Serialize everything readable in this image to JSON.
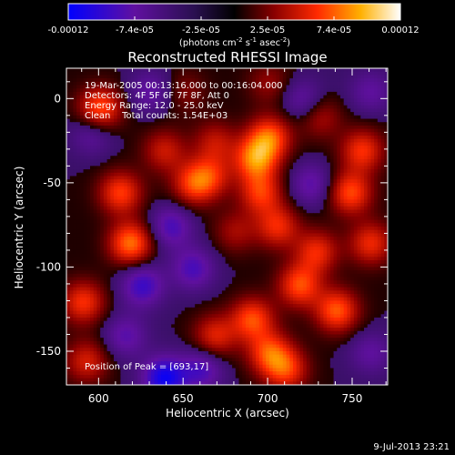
{
  "chart_data": {
    "type": "heatmap",
    "title": "Reconstructed RHESSI Image",
    "xlabel": "Heliocentric X (arcsec)",
    "ylabel": "Heliocentric Y (arcsec)",
    "x_range": [
      581,
      771
    ],
    "y_range": [
      -170,
      18
    ],
    "x_ticks": [
      600,
      650,
      700,
      750
    ],
    "y_ticks": [
      0,
      -50,
      -100,
      -150
    ],
    "colorbar": {
      "min": -0.00012,
      "max": 0.00012,
      "tick_labels": [
        "-0.00012",
        "-7.4e-05",
        "-2.5e-05",
        "2.5e-05",
        "7.4e-05",
        "0.00012"
      ],
      "units_label": "(photons cm",
      "units_exp1": "-2",
      "units_mid": " s",
      "units_exp2": "-1",
      "units_end": " asec",
      "units_exp3": "-2",
      "units_close": ")"
    },
    "annotations": [
      "19-Mar-2005 00:13:16.000 to 00:16:04.000",
      "Detectors: 4F 5F 6F 7F 8F, Att 0",
      "Energy Range: 12.0 - 25.0 keV",
      "Clean    Total counts: 1.54E+03"
    ],
    "peak_label": "Position of Peak = [693,17]",
    "peak_position": [
      693,
      17
    ],
    "footer_date": "9-Jul-2013 23:21",
    "blobs": [
      {
        "x": 600,
        "y": -5,
        "v": 0.9
      },
      {
        "x": 612,
        "y": -55,
        "v": 0.8
      },
      {
        "x": 618,
        "y": -85,
        "v": 1.0
      },
      {
        "x": 638,
        "y": -30,
        "v": 0.55
      },
      {
        "x": 655,
        "y": -50,
        "v": 0.7
      },
      {
        "x": 665,
        "y": -45,
        "v": 0.6
      },
      {
        "x": 680,
        "y": -78,
        "v": 0.4
      },
      {
        "x": 700,
        "y": 10,
        "v": 0.35
      },
      {
        "x": 695,
        "y": -55,
        "v": 0.75
      },
      {
        "x": 692,
        "y": -35,
        "v": 1.0
      },
      {
        "x": 700,
        "y": -22,
        "v": 0.9
      },
      {
        "x": 705,
        "y": -75,
        "v": 0.7
      },
      {
        "x": 718,
        "y": -110,
        "v": 0.85
      },
      {
        "x": 728,
        "y": -90,
        "v": 0.7
      },
      {
        "x": 740,
        "y": -125,
        "v": 0.9
      },
      {
        "x": 748,
        "y": -55,
        "v": 0.85
      },
      {
        "x": 755,
        "y": -30,
        "v": 0.75
      },
      {
        "x": 760,
        "y": -85,
        "v": 0.7
      },
      {
        "x": 690,
        "y": -130,
        "v": 0.85
      },
      {
        "x": 700,
        "y": -150,
        "v": 0.8
      },
      {
        "x": 710,
        "y": -160,
        "v": 0.75
      },
      {
        "x": 668,
        "y": -140,
        "v": 0.65
      },
      {
        "x": 590,
        "y": -120,
        "v": 0.75
      },
      {
        "x": 592,
        "y": -155,
        "v": 0.6
      },
      {
        "x": 668,
        "y": -25,
        "v": 0.5
      },
      {
        "x": 730,
        "y": -10,
        "v": 0.45
      },
      {
        "x": 650,
        "y": 5,
        "v": 0.3
      },
      {
        "x": 642,
        "y": -75,
        "v": -0.6
      },
      {
        "x": 625,
        "y": -110,
        "v": -0.7
      },
      {
        "x": 655,
        "y": -100,
        "v": -0.6
      },
      {
        "x": 615,
        "y": -140,
        "v": -0.5
      },
      {
        "x": 638,
        "y": -165,
        "v": -1.0
      },
      {
        "x": 660,
        "y": -160,
        "v": -0.6
      },
      {
        "x": 595,
        "y": -20,
        "v": -0.4
      },
      {
        "x": 630,
        "y": 5,
        "v": -0.45
      },
      {
        "x": 720,
        "y": 0,
        "v": -0.45
      },
      {
        "x": 725,
        "y": -50,
        "v": -0.5
      },
      {
        "x": 760,
        "y": -150,
        "v": -0.4
      },
      {
        "x": 760,
        "y": 5,
        "v": -0.4
      }
    ],
    "field_scale": [
      7e-05,
      4.2e-05
    ]
  }
}
